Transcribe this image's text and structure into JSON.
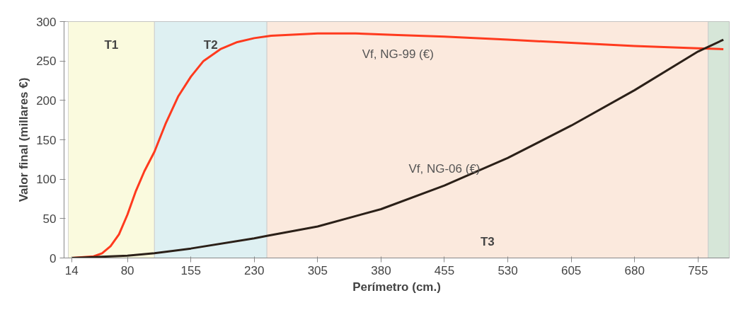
{
  "chart_data": {
    "type": "line",
    "xlabel": "Perímetro (cm.)",
    "ylabel": "Valor final (millares €)",
    "xlim": [
      5,
      792
    ],
    "ylim": [
      0,
      300
    ],
    "xticks": [
      14,
      80,
      155,
      230,
      305,
      380,
      455,
      530,
      605,
      680,
      755
    ],
    "yticks": [
      0,
      50,
      100,
      150,
      200,
      250,
      300
    ],
    "grid": false,
    "legend": false,
    "marker": "none",
    "line_style": "solid",
    "bands": [
      {
        "axis": "x",
        "from": 10,
        "to": 112,
        "label": "T1",
        "color": "#fafade"
      },
      {
        "axis": "x",
        "from": 112,
        "to": 245,
        "label": "T2",
        "color": "#def0f2"
      },
      {
        "axis": "x",
        "from": 245,
        "to": 767,
        "label": "T3",
        "color": "#fbe9dd"
      },
      {
        "axis": "x",
        "from": 767,
        "to": 792,
        "label": null,
        "color": "#d6e6d8"
      }
    ],
    "series": [
      {
        "name": "Vf, NG-99 (€)",
        "color": "#ff3a1e",
        "x": [
          14,
          40,
          50,
          60,
          70,
          80,
          90,
          100,
          112,
          125,
          140,
          155,
          170,
          190,
          210,
          230,
          250,
          305,
          350,
          400,
          455,
          530,
          605,
          680,
          755,
          785
        ],
        "values": [
          0,
          2,
          6,
          15,
          30,
          55,
          85,
          110,
          135,
          170,
          205,
          230,
          250,
          265,
          274,
          279,
          282,
          285,
          285,
          283,
          281,
          277,
          273,
          269,
          266,
          265
        ]
      },
      {
        "name": "Vf, NG-06 (€)",
        "color": "#2b2018",
        "x": [
          14,
          80,
          112,
          155,
          230,
          245,
          305,
          380,
          455,
          530,
          605,
          680,
          755,
          785
        ],
        "values": [
          0,
          3,
          6,
          12,
          25,
          28,
          40,
          62,
          92,
          127,
          168,
          213,
          262,
          277
        ]
      }
    ]
  }
}
